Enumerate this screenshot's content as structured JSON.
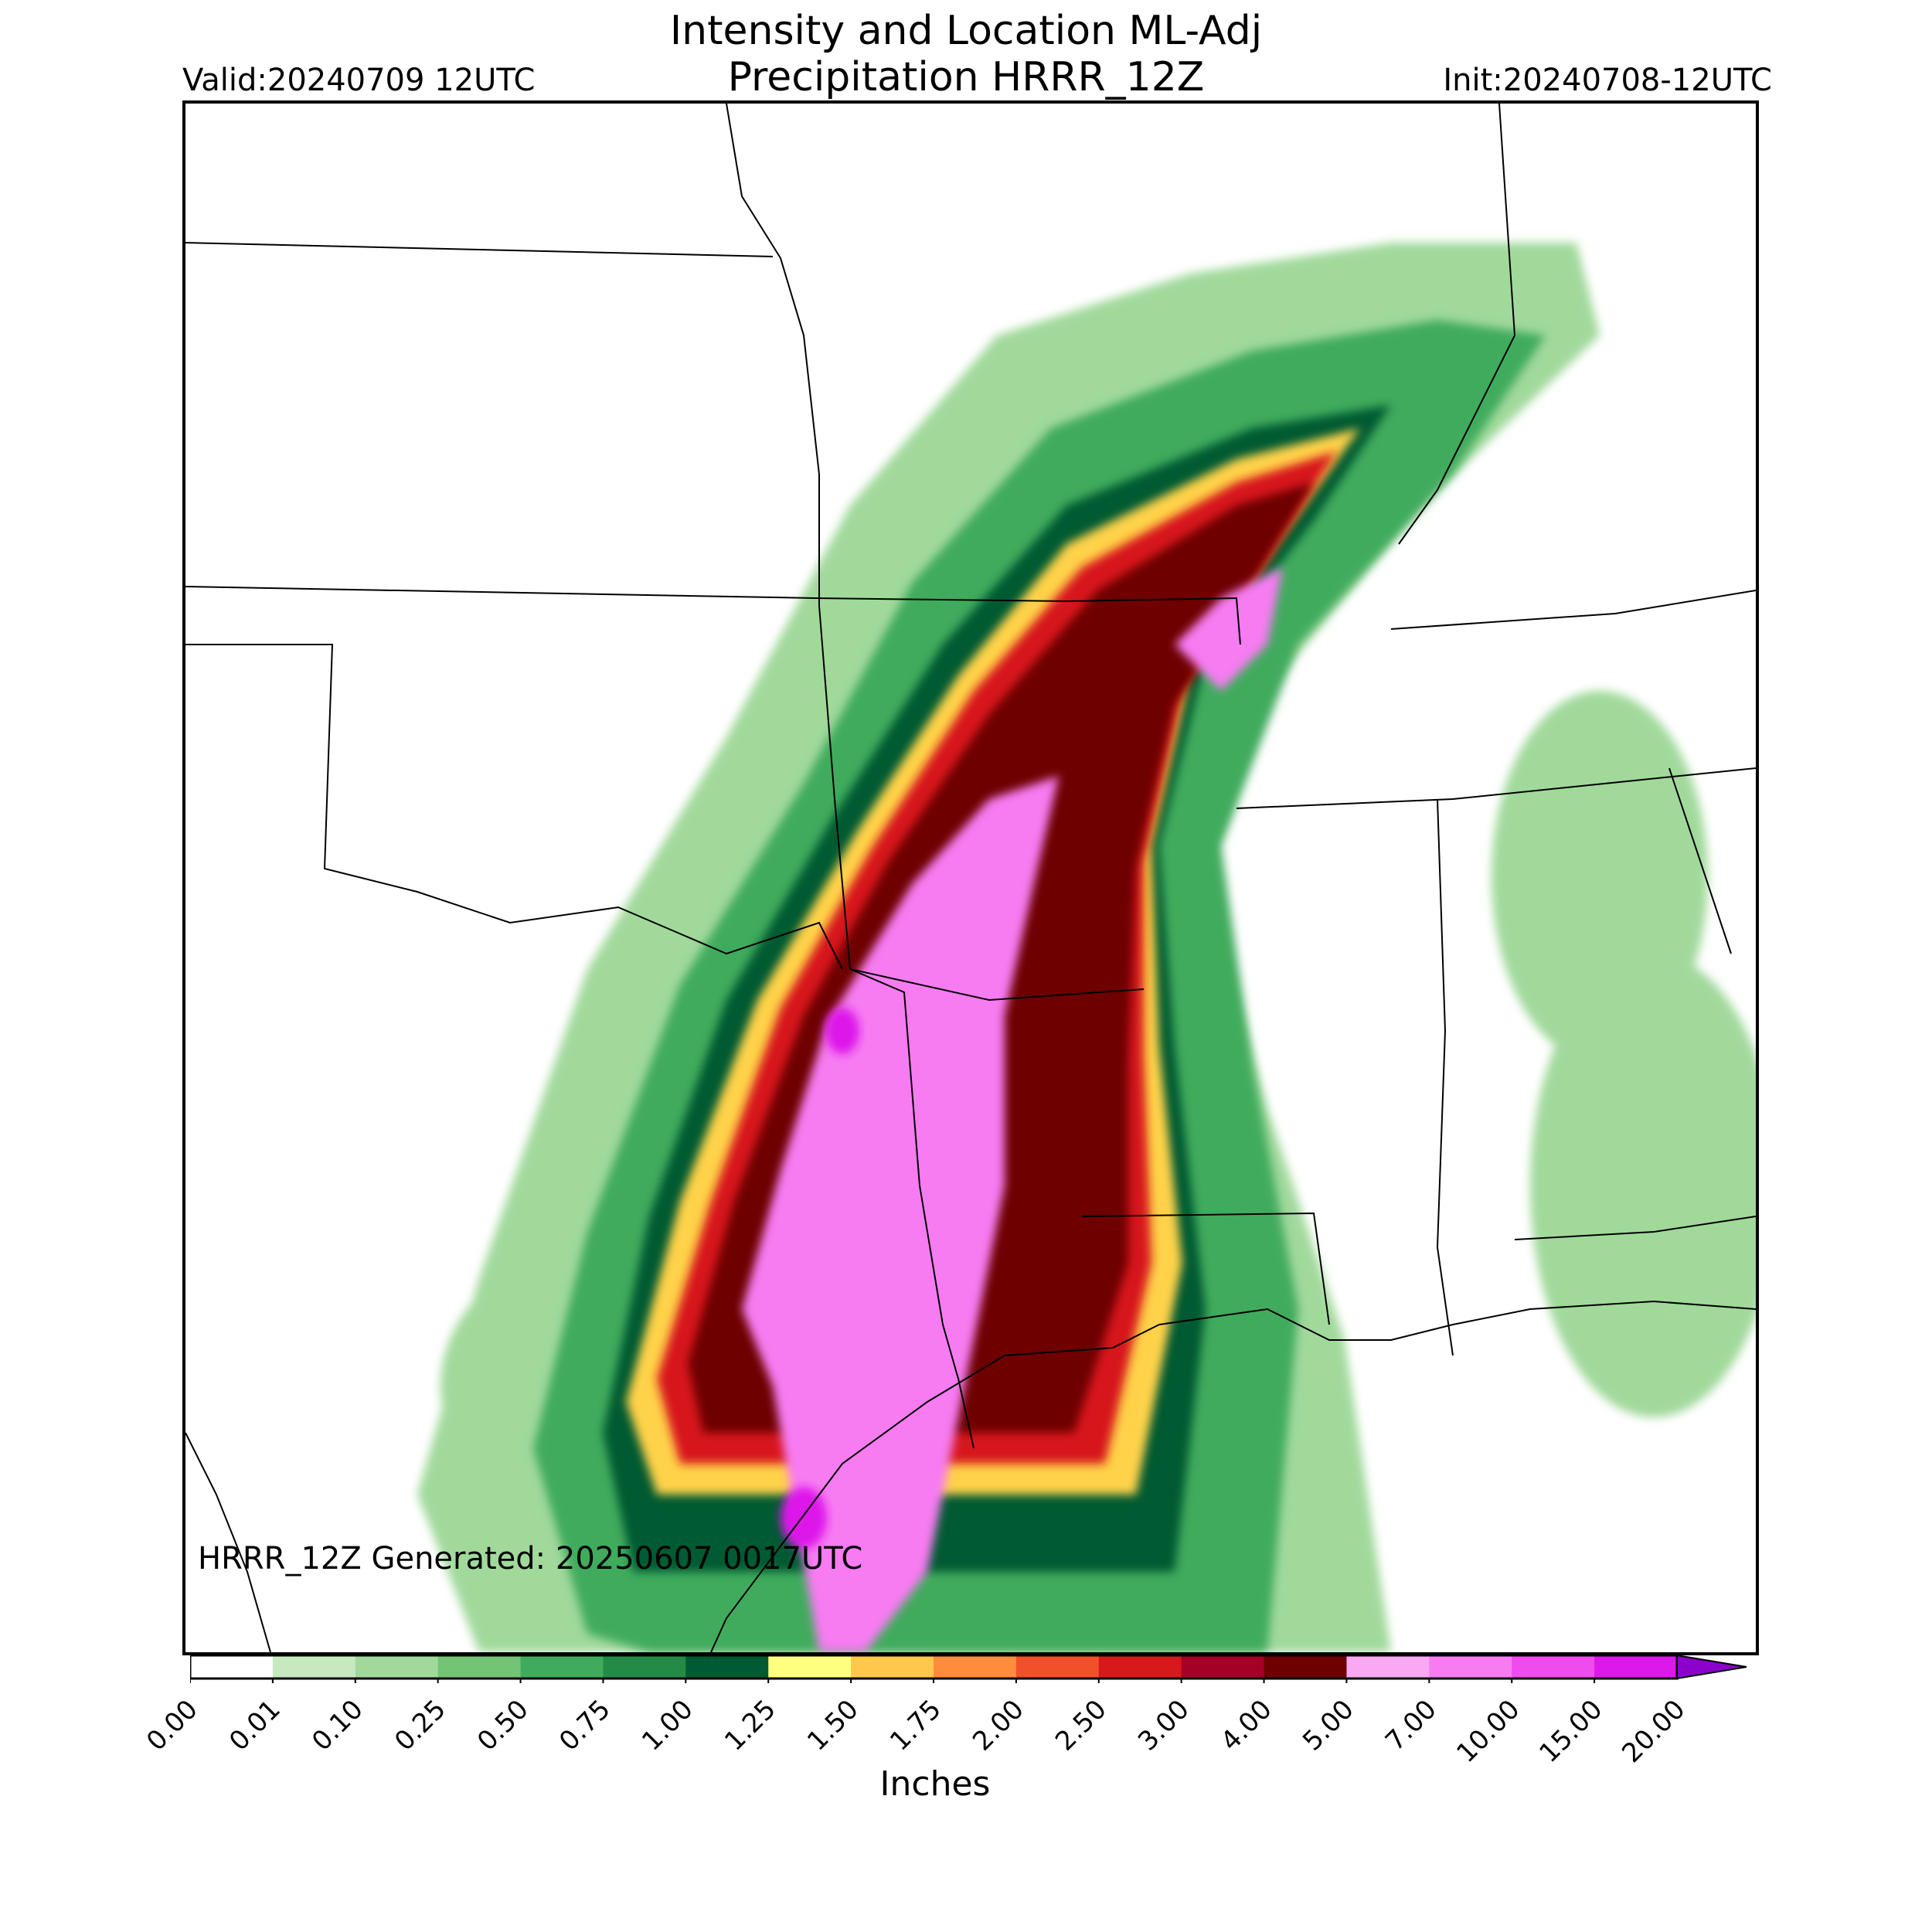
{
  "title_line1": "Intensity and Location ML-Adj",
  "title_line2": "Precipitation HRRR_12Z",
  "valid": "Valid:20240709 12UTC",
  "init": "Init:20240708-12UTC",
  "generated": "HRRR_12Z Generated: 20250607 0017UTC",
  "colorbar": {
    "label": "Inches",
    "ticks": [
      "0.00",
      "0.01",
      "0.10",
      "0.25",
      "0.50",
      "0.75",
      "1.00",
      "1.25",
      "1.50",
      "1.75",
      "2.00",
      "2.50",
      "3.00",
      "4.00",
      "5.00",
      "7.00",
      "10.00",
      "15.00",
      "20.00"
    ],
    "colors": [
      "#ffffff",
      "#c7e9c0",
      "#a1d99b",
      "#74c476",
      "#41ab5d",
      "#238b45",
      "#005a32",
      "#ffff80",
      "#ffc84a",
      "#ff8c3a",
      "#f2502a",
      "#d7191c",
      "#a50026",
      "#6e0000",
      "#f9a8f4",
      "#f77cf2",
      "#f04bec",
      "#dd18ea",
      "#b80fde",
      "#8d00cc"
    ],
    "extend": "max"
  },
  "colors": {
    "state_lines": "#000000",
    "light_green": "#a1d99b",
    "green": "#41ab5d",
    "dark_green": "#005a32",
    "yellow": "#ffd24a",
    "orange": "#ff8c3a",
    "red": "#d7191c",
    "dark_red": "#6e0000",
    "pink": "#f77cf2",
    "magenta": "#dd18ea"
  }
}
